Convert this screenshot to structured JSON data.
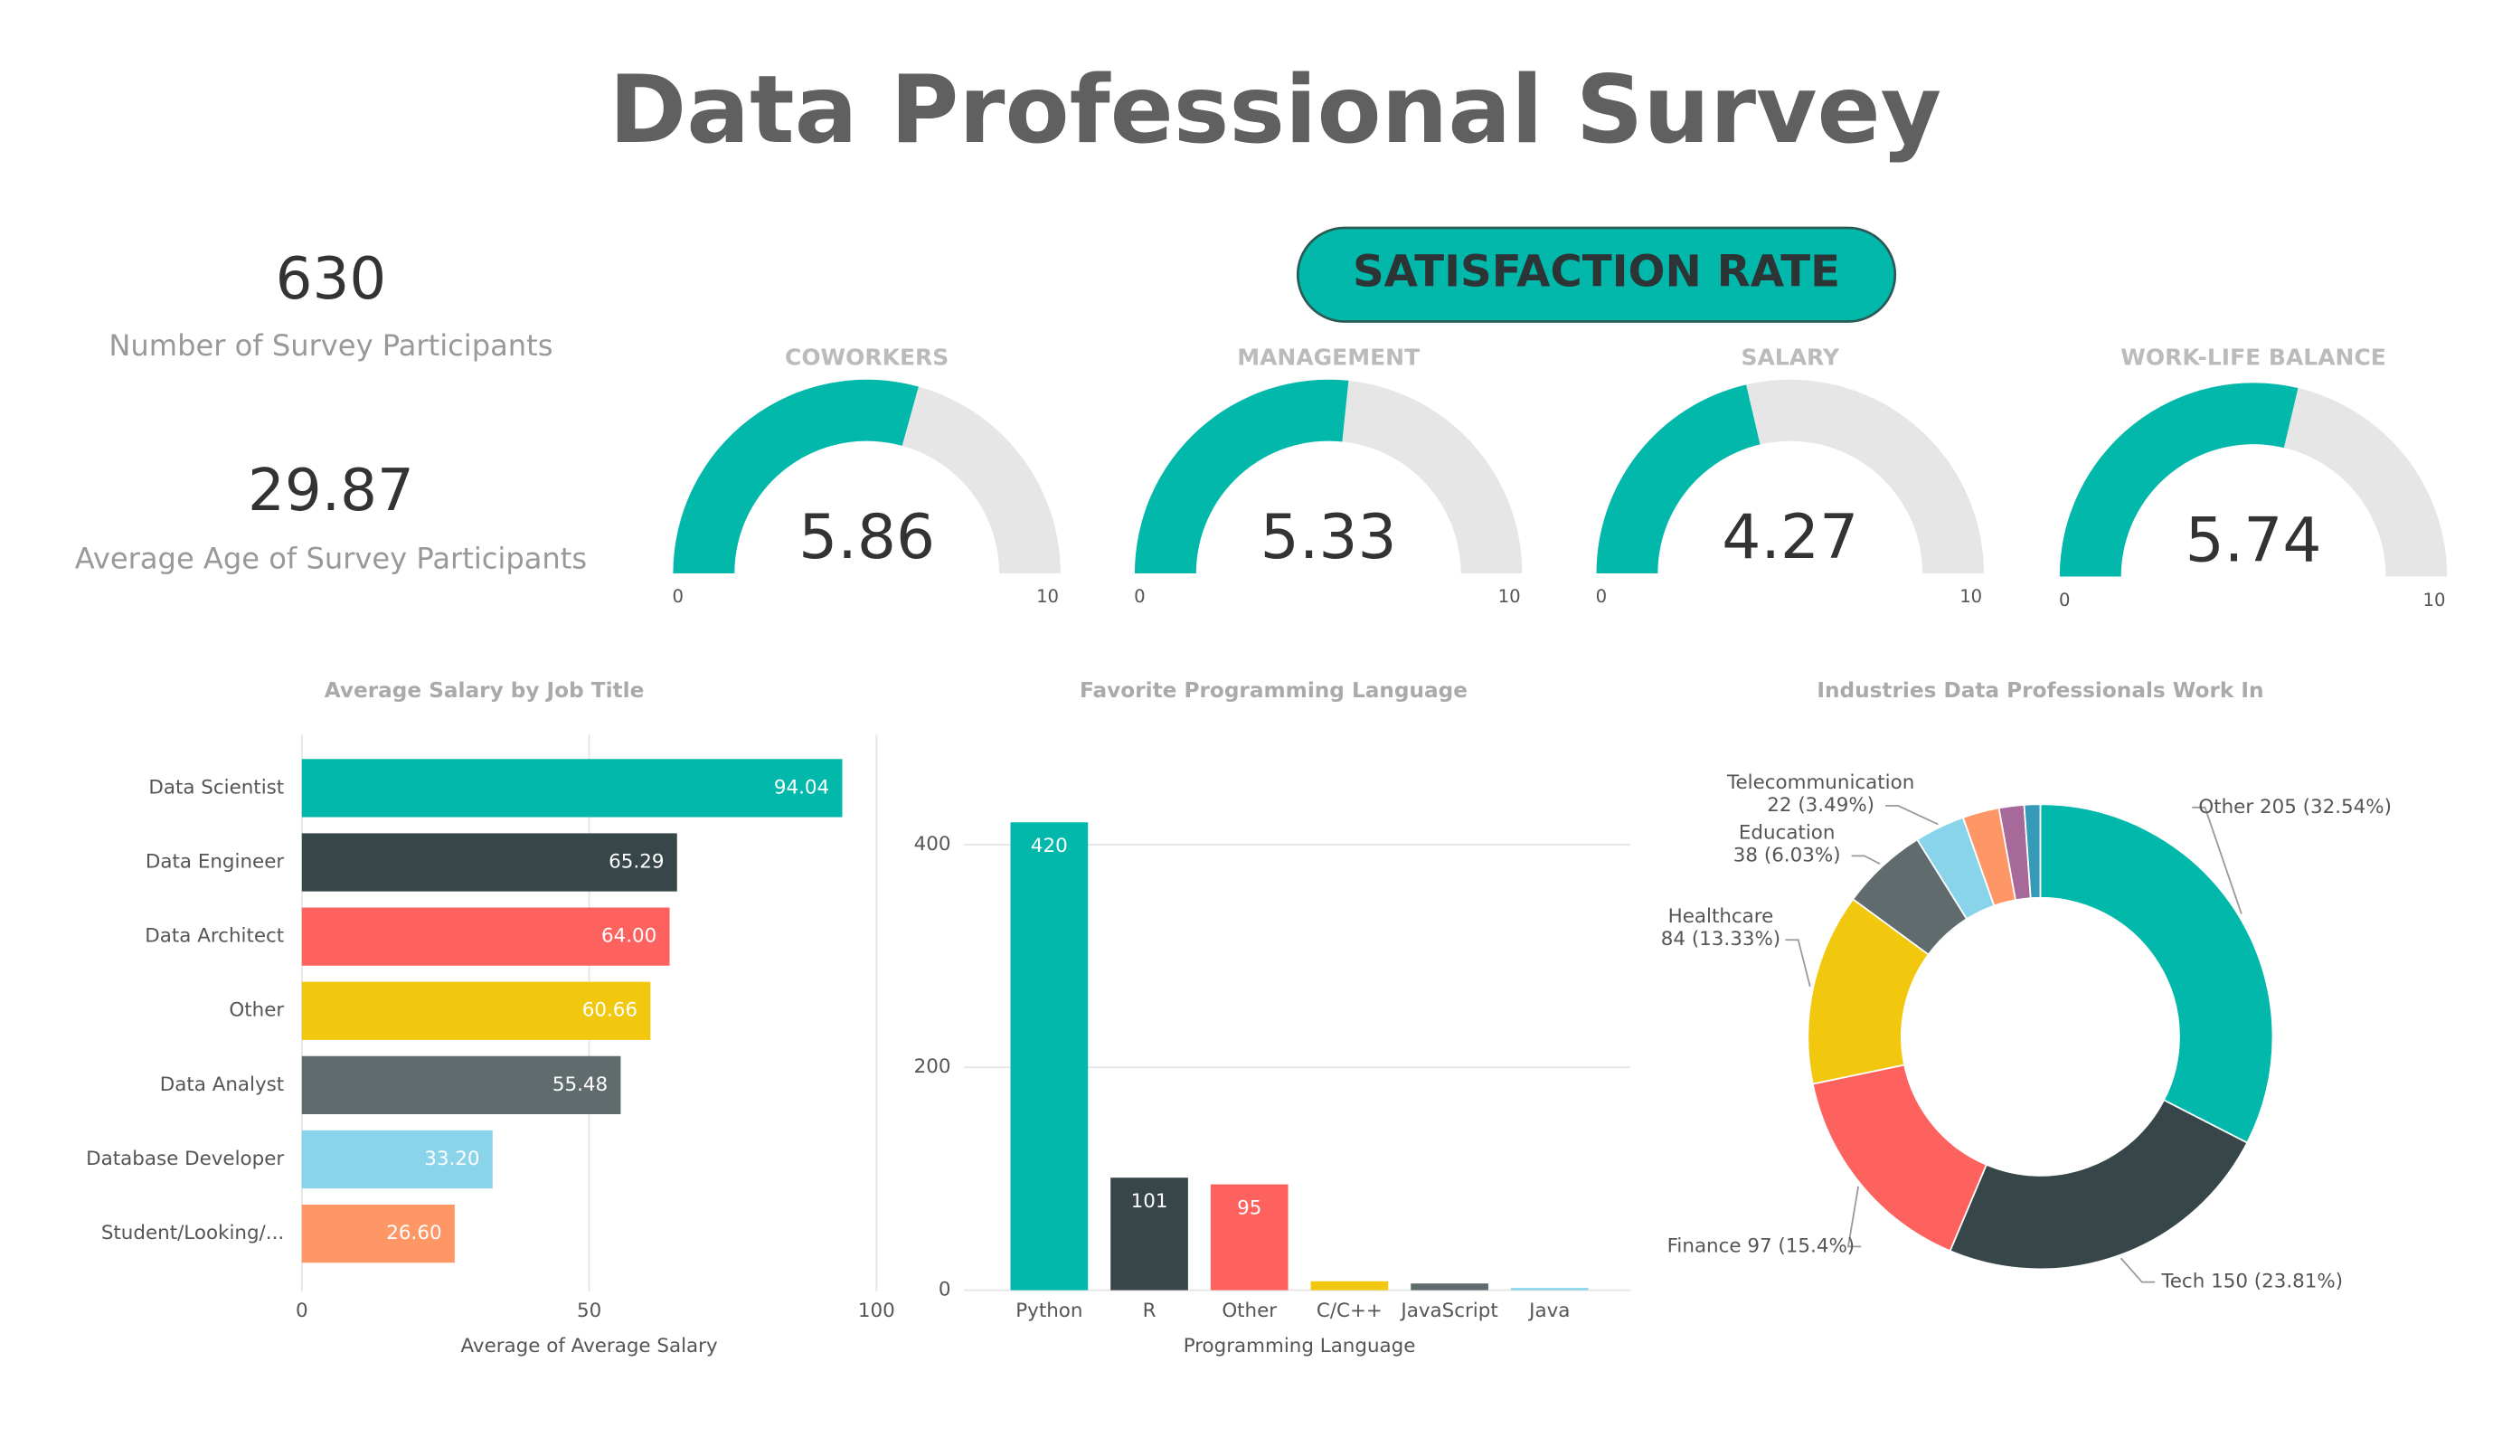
{
  "title": "Data Professional Survey",
  "kpis": [
    {
      "value": 630,
      "label": "Number of Survey Participants"
    },
    {
      "value": 29.87,
      "label": "Average Age of Survey Participants"
    }
  ],
  "section_title": "SATISFACTION RATE",
  "chart_data": [
    {
      "type": "gauge",
      "title": "COWORKERS",
      "value": 5.86,
      "range": [
        0,
        10
      ],
      "color": "#01B8AA"
    },
    {
      "type": "gauge",
      "title": "MANAGEMENT",
      "value": 5.33,
      "range": [
        0,
        10
      ],
      "color": "#01B8AA"
    },
    {
      "type": "gauge",
      "title": "SALARY",
      "value": 4.27,
      "range": [
        0,
        10
      ],
      "color": "#01B8AA"
    },
    {
      "type": "gauge",
      "title": "WORK-LIFE BALANCE",
      "value": 5.74,
      "range": [
        0,
        10
      ],
      "color": "#01B8AA"
    },
    {
      "type": "bar",
      "orientation": "horizontal",
      "title": "Average Salary by Job Title",
      "categories": [
        "Data Scientist",
        "Data Engineer",
        "Data Architect",
        "Other",
        "Data Analyst",
        "Database Developer",
        "Student/Looking/..."
      ],
      "values": [
        94.04,
        65.29,
        64.0,
        60.66,
        55.48,
        33.2,
        26.6
      ],
      "value_labels": [
        "94.04",
        "65.29",
        "64.00",
        "60.66",
        "55.48",
        "33.20",
        "26.60"
      ],
      "colors": [
        "#01B8AA",
        "#374649",
        "#FD625E",
        "#F2C80F",
        "#5F6B6D",
        "#8AD4EB",
        "#FE9666"
      ],
      "xlabel": "Average of Average Salary",
      "xlim": [
        0,
        100
      ],
      "xticks": [
        0,
        50,
        100
      ],
      "grid": true
    },
    {
      "type": "bar",
      "orientation": "vertical",
      "title": "Favorite Programming Language",
      "categories": [
        "Python",
        "R",
        "Other",
        "C/C++",
        "JavaScript",
        "Java"
      ],
      "values": [
        420,
        101,
        95,
        8,
        6,
        2
      ],
      "data_labels": [
        true,
        true,
        true,
        false,
        false,
        false
      ],
      "colors": [
        "#01B8AA",
        "#374649",
        "#FD625E",
        "#F2C80F",
        "#5F6B6D",
        "#8AD4EB"
      ],
      "xlabel": "Programming Language",
      "ylim": [
        0,
        500
      ],
      "yticks": [
        0,
        200,
        400
      ],
      "grid": true
    },
    {
      "type": "pie",
      "hole": true,
      "title": "Industries Data Professionals Work In",
      "categories": [
        "Other",
        "Tech",
        "Finance",
        "Healthcare",
        "Education",
        "Telecommunication",
        null,
        null,
        null
      ],
      "values": [
        205,
        150,
        97,
        84,
        38,
        22,
        16,
        11,
        7
      ],
      "value_labels": [
        "205 (32.54%)",
        "150 (23.81%)",
        "97 (15.4%)",
        "84 (13.33%)",
        "38 (6.03%)",
        "22 (3.49%)",
        null,
        null,
        null
      ],
      "colors": [
        "#01B8AA",
        "#374649",
        "#FD625E",
        "#F2C80F",
        "#5F6B6D",
        "#8AD4EB",
        "#FE9666",
        "#A66999",
        "#3599B8"
      ]
    }
  ]
}
